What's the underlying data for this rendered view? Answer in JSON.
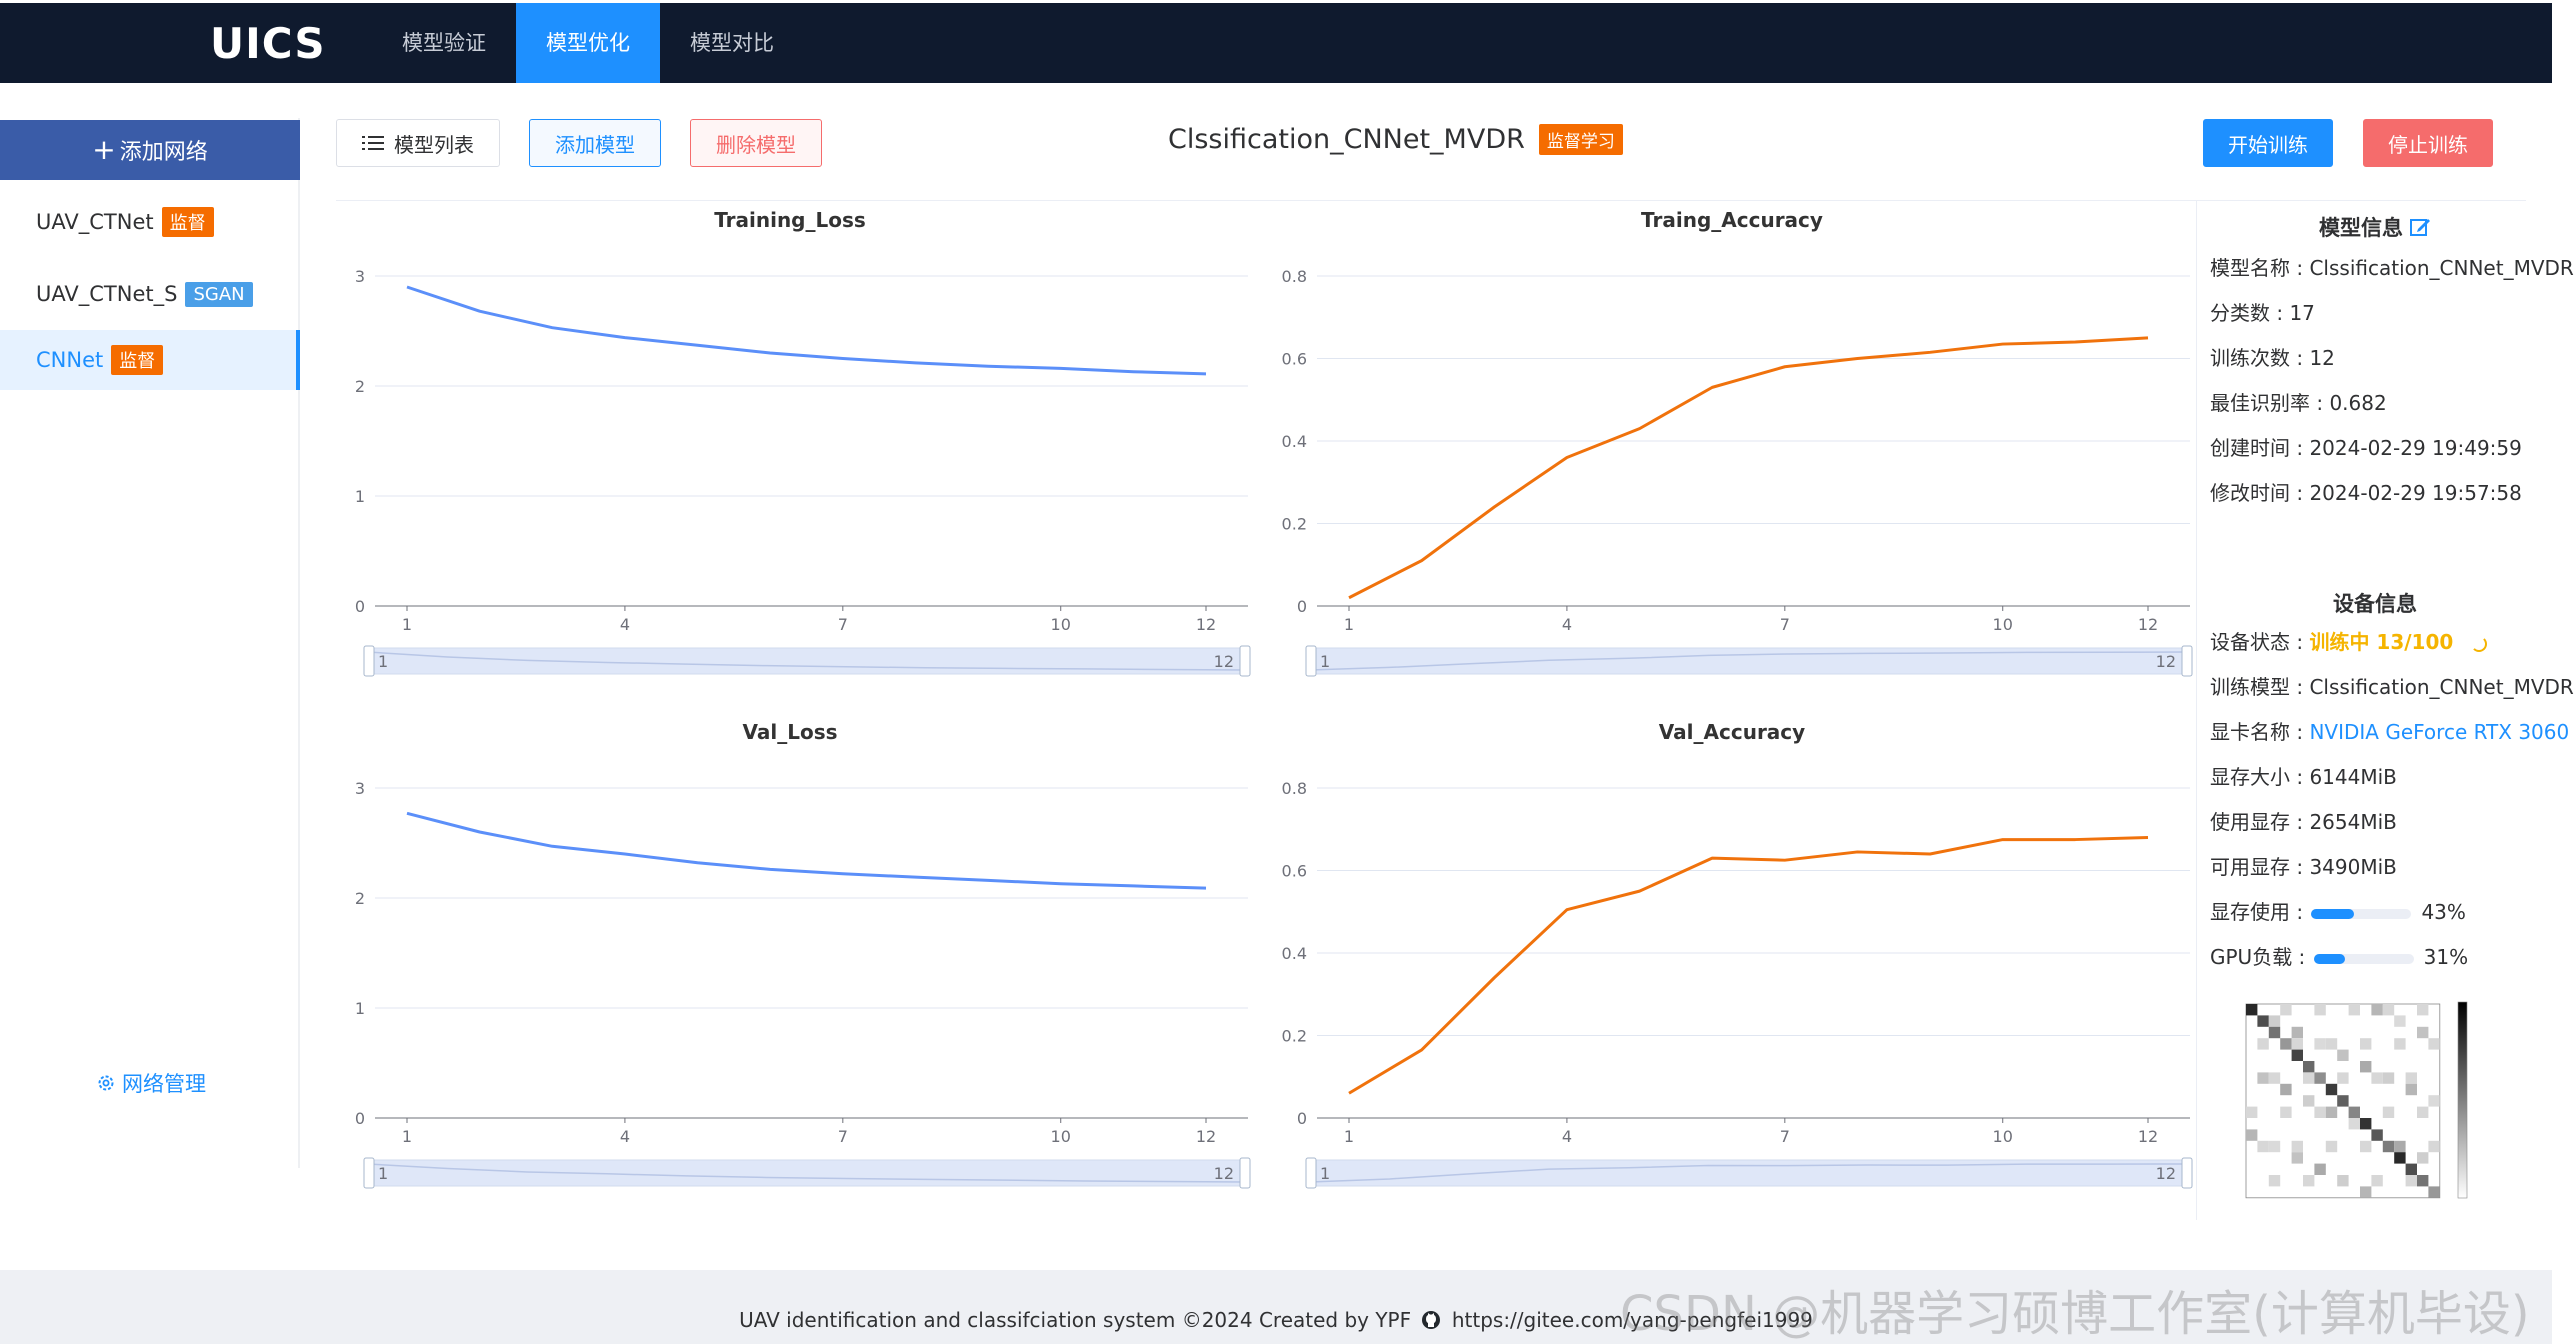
{
  "header": {
    "logo": "UICS",
    "nav": [
      {
        "label": "模型验证",
        "active": false
      },
      {
        "label": "模型优化",
        "active": true
      },
      {
        "label": "模型对比",
        "active": false
      }
    ]
  },
  "sidebar": {
    "add_label": "添加网络",
    "items": [
      {
        "name": "UAV_CTNet",
        "tag": "监督",
        "tag_color": "#f56c00"
      },
      {
        "name": "UAV_CTNet_S",
        "tag": "SGAN",
        "tag_color": "#4a9fe8"
      },
      {
        "name": "CNNet",
        "tag": "监督",
        "tag_color": "#f56c00",
        "active": true
      }
    ],
    "manage_label": "网络管理"
  },
  "toolbar": {
    "list_label": "模型列表",
    "add_label": "添加模型",
    "delete_label": "删除模型",
    "start_label": "开始训练",
    "stop_label": "停止训练"
  },
  "model": {
    "name": "Clssification_CNNet_MVDR",
    "tag": "监督学习"
  },
  "chart_data": [
    {
      "type": "line",
      "title": "Training_Loss",
      "x": [
        1,
        2,
        3,
        4,
        5,
        6,
        7,
        8,
        9,
        10,
        11,
        12
      ],
      "series": [
        {
          "values": [
            2.9,
            2.68,
            2.53,
            2.44,
            2.37,
            2.3,
            2.25,
            2.21,
            2.18,
            2.16,
            2.13,
            2.11
          ],
          "color": "#5b8ff9"
        }
      ],
      "ylim": [
        0,
        3
      ],
      "yticks": [
        "0",
        "1",
        "2",
        "3"
      ],
      "xticks": [
        "1",
        "4",
        "7",
        "10",
        "12"
      ],
      "slider": {
        "start": "1",
        "end": "12"
      }
    },
    {
      "type": "line",
      "title": "Traing_Accuracy",
      "x": [
        1,
        2,
        3,
        4,
        5,
        6,
        7,
        8,
        9,
        10,
        11,
        12
      ],
      "series": [
        {
          "values": [
            0.02,
            0.11,
            0.24,
            0.36,
            0.43,
            0.53,
            0.58,
            0.6,
            0.615,
            0.635,
            0.64,
            0.65
          ],
          "color": "#f0720c"
        }
      ],
      "ylim": [
        0,
        0.8
      ],
      "yticks": [
        "0",
        "0.2",
        "0.4",
        "0.6",
        "0.8"
      ],
      "xticks": [
        "1",
        "4",
        "7",
        "10",
        "12"
      ],
      "slider": {
        "start": "1",
        "end": "12"
      }
    },
    {
      "type": "line",
      "title": "Val_Loss",
      "x": [
        1,
        2,
        3,
        4,
        5,
        6,
        7,
        8,
        9,
        10,
        11,
        12
      ],
      "series": [
        {
          "values": [
            2.77,
            2.6,
            2.47,
            2.4,
            2.32,
            2.26,
            2.22,
            2.19,
            2.16,
            2.13,
            2.11,
            2.09
          ],
          "color": "#5b8ff9"
        }
      ],
      "ylim": [
        0,
        3
      ],
      "yticks": [
        "0",
        "1",
        "2",
        "3"
      ],
      "xticks": [
        "1",
        "4",
        "7",
        "10",
        "12"
      ],
      "slider": {
        "start": "1",
        "end": "12"
      }
    },
    {
      "type": "line",
      "title": "Val_Accuracy",
      "x": [
        1,
        2,
        3,
        4,
        5,
        6,
        7,
        8,
        9,
        10,
        11,
        12
      ],
      "series": [
        {
          "values": [
            0.06,
            0.165,
            0.34,
            0.505,
            0.55,
            0.63,
            0.625,
            0.645,
            0.64,
            0.675,
            0.675,
            0.68
          ],
          "color": "#f0720c"
        }
      ],
      "ylim": [
        0,
        0.8
      ],
      "yticks": [
        "0",
        "0.2",
        "0.4",
        "0.6",
        "0.8"
      ],
      "xticks": [
        "1",
        "4",
        "7",
        "10",
        "12"
      ],
      "slider": {
        "start": "1",
        "end": "12"
      }
    }
  ],
  "model_info": {
    "title": "模型信息",
    "name_label": "模型名称 : ",
    "name": "Clssification_CNNet_MVDR",
    "classes_label": "分类数 : ",
    "classes": "17",
    "epochs_label": "训练次数 : ",
    "epochs": "12",
    "best_label": "最佳识别率 : ",
    "best": "0.682",
    "created_label": "创建时间 : ",
    "created": "2024-02-29 19:49:59",
    "modified_label": "修改时间 : ",
    "modified": "2024-02-29 19:57:58"
  },
  "device_info": {
    "title": "设备信息",
    "status_label": "设备状态 : ",
    "status": "训练中 13/100",
    "model_label": "训练模型 : ",
    "model": "Clssification_CNNet_MVDR",
    "gpu_label": "显卡名称 : ",
    "gpu": "NVIDIA GeForce RTX 3060",
    "mem_label": "显存大小 : ",
    "mem": "6144MiB",
    "used_label": "使用显存 : ",
    "used": "2654MiB",
    "free_label": "可用显存 : ",
    "free": "3490MiB",
    "mem_usage_label": "显存使用 : ",
    "mem_usage_pct": 43,
    "mem_usage_text": "43%",
    "gpu_load_label": "GPU负载 : ",
    "gpu_load_pct": 31,
    "gpu_load_text": "31%"
  },
  "footer": {
    "text": "UAV identification and classifciation system ©2024 Created by YPF",
    "link": "https://gitee.com/yang-pengfei1999"
  },
  "watermark": "CSDN @机器学习硕博工作室(计算机毕设)"
}
